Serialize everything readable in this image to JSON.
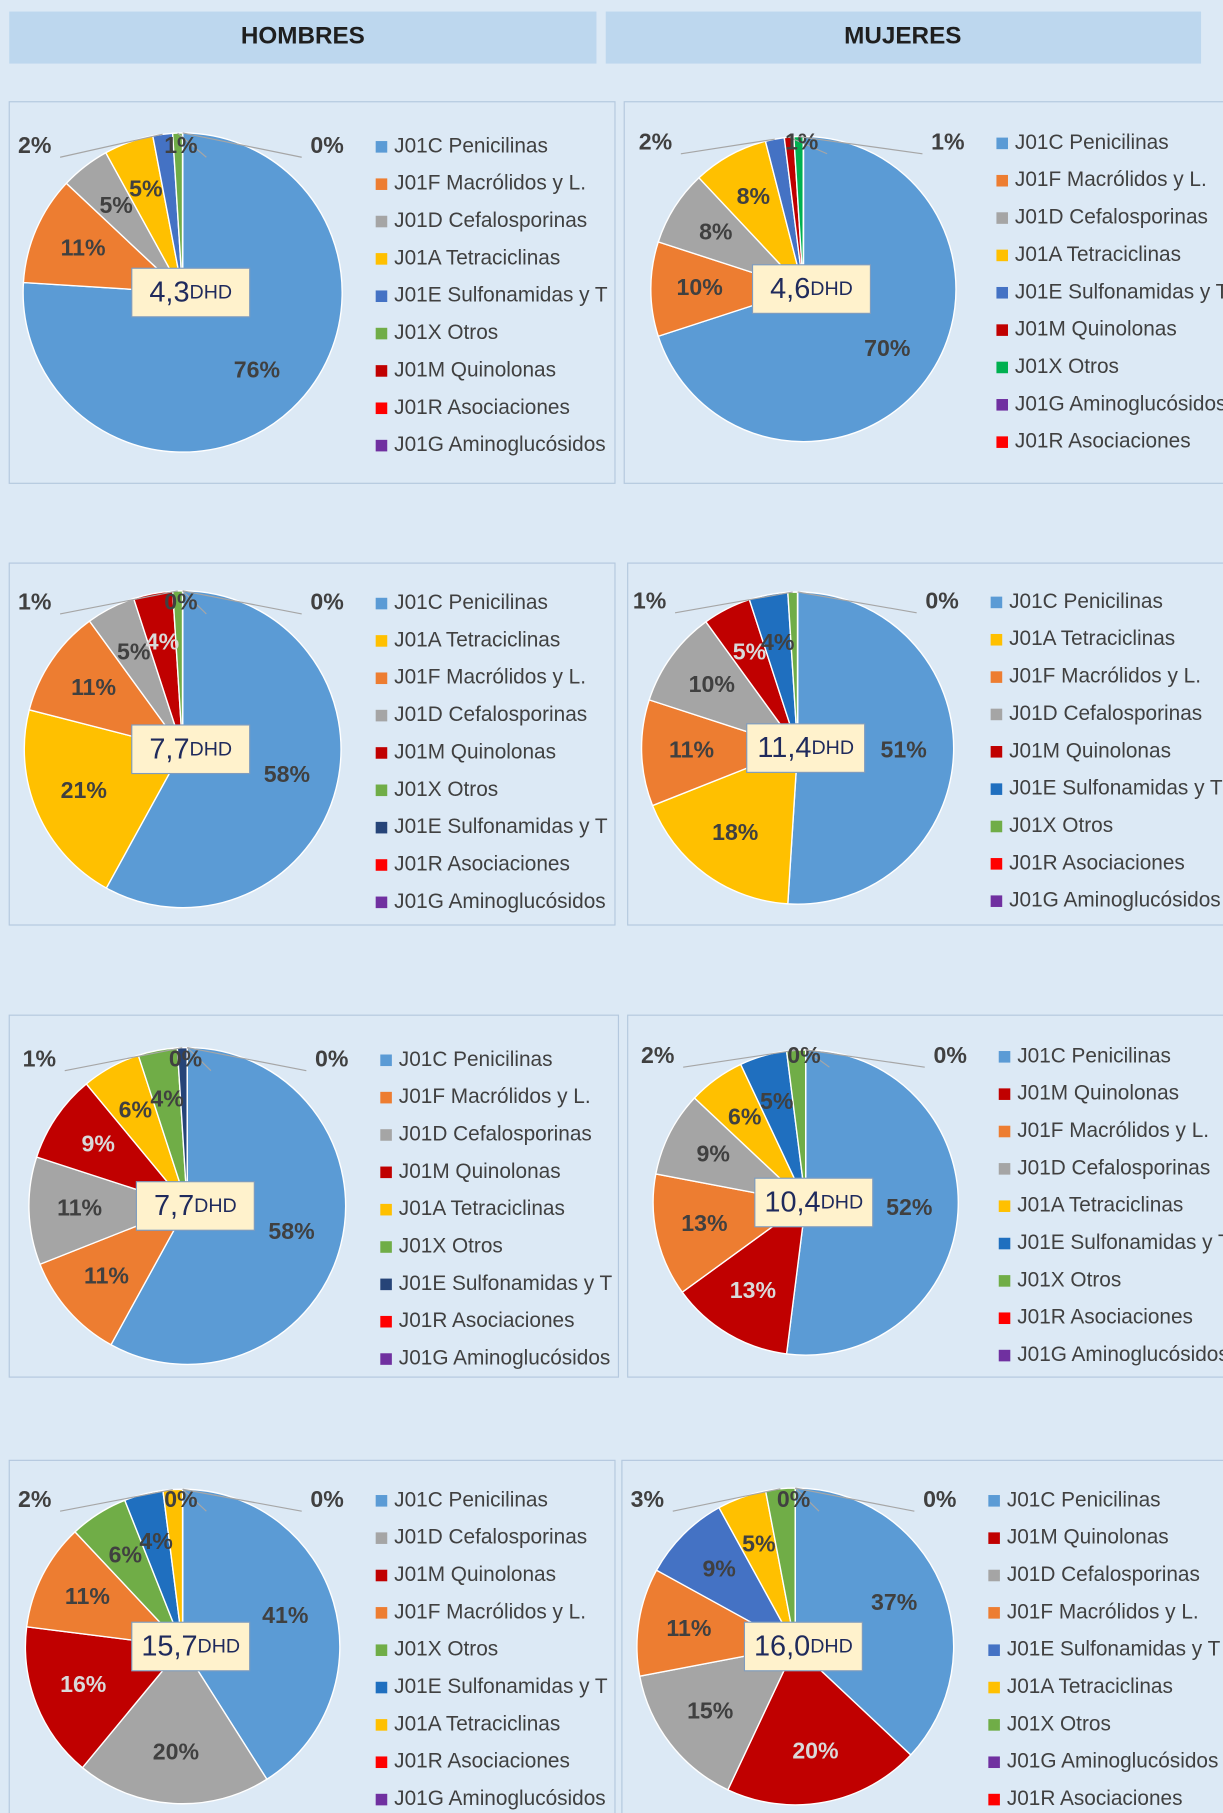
{
  "headers": [
    "HOMBRES",
    "MUJERES"
  ],
  "chart_data": [
    {
      "type": "pie",
      "categories": [
        "J01C Penicilinas",
        "J01F Macrólidos y L.",
        "J01D Cefalosporinas",
        "J01A Tetraciclinas",
        "J01E Sulfonamidas y T",
        "J01X Otros",
        "J01M Quinolonas",
        "J01R Asociaciones",
        "J01G Aminoglucósidos"
      ],
      "values": [
        76,
        11,
        5,
        5,
        2,
        1,
        0,
        0,
        0
      ],
      "value_labels": [
        "76%",
        "11%",
        "5%",
        "5%",
        "2%",
        "1%",
        "0%",
        null,
        null
      ],
      "colors": [
        "#5b9bd5",
        "#ed7d31",
        "#a5a5a5",
        "#ffc000",
        "#4472c4",
        "#70ad47",
        "#c00000",
        "#ff0000",
        "#7030a0"
      ],
      "center_value": "4,3",
      "center_unit": "DHD"
    },
    {
      "type": "pie",
      "categories": [
        "J01C Penicilinas",
        "J01F Macrólidos y L.",
        "J01D Cefalosporinas",
        "J01A Tetraciclinas",
        "J01E Sulfonamidas y T",
        "J01M Quinolonas",
        "J01X Otros",
        "J01G Aminoglucósidos",
        "J01R Asociaciones"
      ],
      "values": [
        70,
        10,
        8,
        8,
        2,
        1,
        1,
        0,
        0
      ],
      "value_labels": [
        "70%",
        "10%",
        "8%",
        "8%",
        "2%",
        "1%",
        "1%",
        null,
        null
      ],
      "colors": [
        "#5b9bd5",
        "#ed7d31",
        "#a5a5a5",
        "#ffc000",
        "#4472c4",
        "#c00000",
        "#00b050",
        "#7030a0",
        "#ff0000"
      ],
      "center_value": "4,6",
      "center_unit": "DHD"
    },
    {
      "type": "pie",
      "categories": [
        "J01C Penicilinas",
        "J01A Tetraciclinas",
        "J01F Macrólidos y L.",
        "J01D Cefalosporinas",
        "J01M Quinolonas",
        "J01X Otros",
        "J01E Sulfonamidas y T",
        "J01R Asociaciones",
        "J01G Aminoglucósidos"
      ],
      "values": [
        58,
        21,
        11,
        5,
        4,
        1,
        0,
        0,
        0
      ],
      "value_labels": [
        "58%",
        "21%",
        "11%",
        "5%",
        "4%",
        "1%",
        "0%",
        "0%",
        null
      ],
      "colors": [
        "#5b9bd5",
        "#ffc000",
        "#ed7d31",
        "#a5a5a5",
        "#c00000",
        "#70ad47",
        "#264478",
        "#ff0000",
        "#7030a0"
      ],
      "center_value": "7,7",
      "center_unit": "DHD"
    },
    {
      "type": "pie",
      "categories": [
        "J01C Penicilinas",
        "J01A Tetraciclinas",
        "J01F Macrólidos y L.",
        "J01D Cefalosporinas",
        "J01M Quinolonas",
        "J01E Sulfonamidas y T",
        "J01X Otros",
        "J01R Asociaciones",
        "J01G Aminoglucósidos"
      ],
      "values": [
        51,
        18,
        11,
        10,
        5,
        4,
        1,
        0,
        0
      ],
      "value_labels": [
        "51%",
        "18%",
        "11%",
        "10%",
        "5%",
        "4%",
        "1%",
        "0%",
        null
      ],
      "colors": [
        "#5b9bd5",
        "#ffc000",
        "#ed7d31",
        "#a5a5a5",
        "#c00000",
        "#1f6fbf",
        "#70ad47",
        "#ff0000",
        "#7030a0"
      ],
      "center_value": "11,4",
      "center_unit": "DHD"
    },
    {
      "type": "pie",
      "categories": [
        "J01C Penicilinas",
        "J01F Macrólidos y L.",
        "J01D Cefalosporinas",
        "J01M Quinolonas",
        "J01A Tetraciclinas",
        "J01X Otros",
        "J01E Sulfonamidas y T",
        "J01R Asociaciones",
        "J01G Aminoglucósidos"
      ],
      "values": [
        58,
        11,
        11,
        9,
        6,
        4,
        1,
        0,
        0
      ],
      "value_labels": [
        "58%",
        "11%",
        "11%",
        "9%",
        "6%",
        "4%",
        "1%",
        "0%",
        "0%"
      ],
      "colors": [
        "#5b9bd5",
        "#ed7d31",
        "#a5a5a5",
        "#c00000",
        "#ffc000",
        "#70ad47",
        "#264478",
        "#ff0000",
        "#7030a0"
      ],
      "center_value": "7,7",
      "center_unit": "DHD"
    },
    {
      "type": "pie",
      "categories": [
        "J01C Penicilinas",
        "J01M Quinolonas",
        "J01F Macrólidos y L.",
        "J01D Cefalosporinas",
        "J01A Tetraciclinas",
        "J01E Sulfonamidas y T",
        "J01X Otros",
        "J01R Asociaciones",
        "J01G Aminoglucósidos"
      ],
      "values": [
        52,
        13,
        13,
        9,
        6,
        5,
        2,
        0,
        0
      ],
      "value_labels": [
        "52%",
        "13%",
        "13%",
        "9%",
        "6%",
        "5%",
        "2%",
        "0%",
        "0%"
      ],
      "colors": [
        "#5b9bd5",
        "#c00000",
        "#ed7d31",
        "#a5a5a5",
        "#ffc000",
        "#1f6fbf",
        "#70ad47",
        "#ff0000",
        "#7030a0"
      ],
      "center_value": "10,4",
      "center_unit": "DHD"
    },
    {
      "type": "pie",
      "categories": [
        "J01C Penicilinas",
        "J01D Cefalosporinas",
        "J01M Quinolonas",
        "J01F Macrólidos y L.",
        "J01X Otros",
        "J01E Sulfonamidas y T",
        "J01A Tetraciclinas",
        "J01R Asociaciones",
        "J01G Aminoglucósidos"
      ],
      "values": [
        41,
        20,
        16,
        11,
        6,
        4,
        2,
        0,
        0
      ],
      "value_labels": [
        "41%",
        "20%",
        "16%",
        "11%",
        "6%",
        "4%",
        "2%",
        "0%",
        "0%"
      ],
      "colors": [
        "#5b9bd5",
        "#a5a5a5",
        "#c00000",
        "#ed7d31",
        "#70ad47",
        "#1f6fbf",
        "#ffc000",
        "#ff0000",
        "#7030a0"
      ],
      "center_value": "15,7",
      "center_unit": "DHD"
    },
    {
      "type": "pie",
      "categories": [
        "J01C Penicilinas",
        "J01M Quinolonas",
        "J01D Cefalosporinas",
        "J01F Macrólidos y L.",
        "J01E Sulfonamidas y T",
        "J01A Tetraciclinas",
        "J01X Otros",
        "J01G Aminoglucósidos",
        "J01R Asociaciones"
      ],
      "values": [
        37,
        20,
        15,
        11,
        9,
        5,
        3,
        0,
        0
      ],
      "value_labels": [
        "37%",
        "20%",
        "15%",
        "11%",
        "9%",
        "5%",
        "3%",
        "0%",
        "0%"
      ],
      "colors": [
        "#5b9bd5",
        "#c00000",
        "#a5a5a5",
        "#ed7d31",
        "#4472c4",
        "#ffc000",
        "#70ad47",
        "#7030a0",
        "#ff0000"
      ],
      "center_value": "16,0",
      "center_unit": "DHD"
    }
  ]
}
